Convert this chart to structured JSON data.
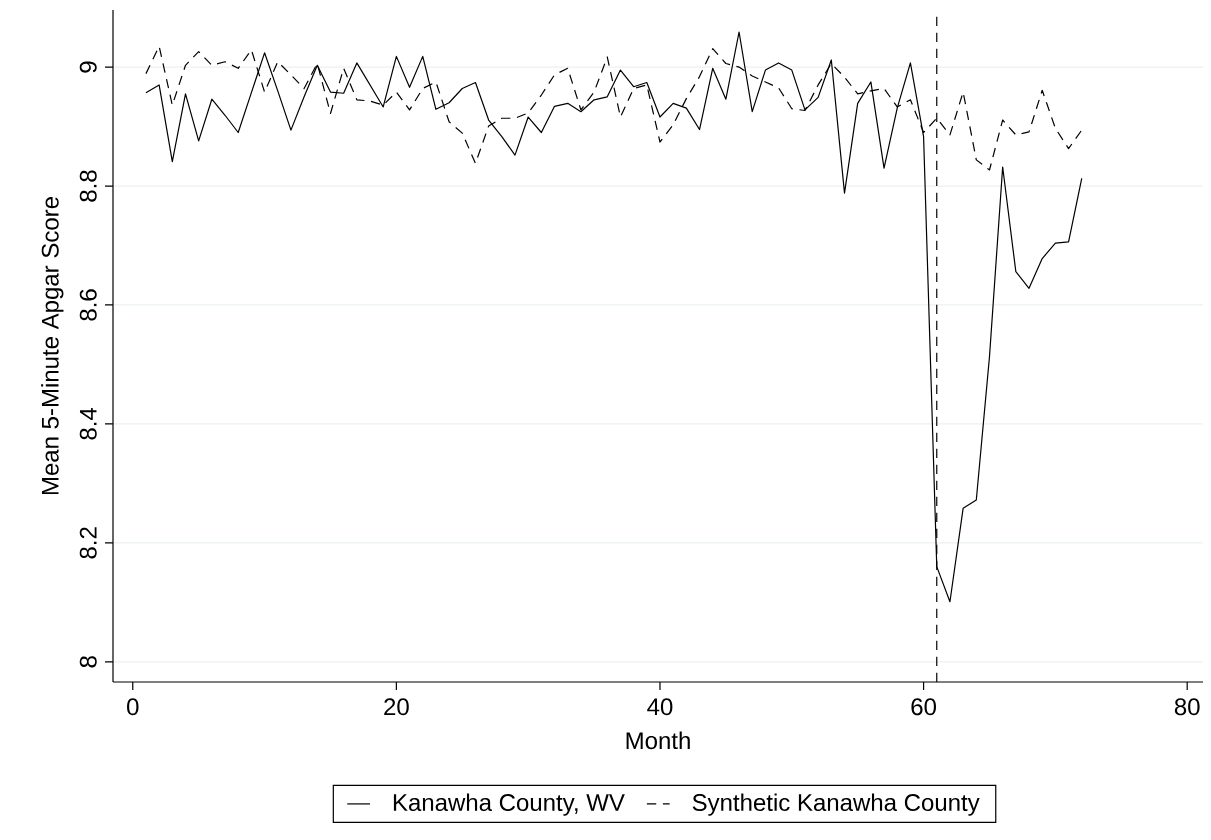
{
  "chart_data": {
    "type": "line",
    "xlabel": "Month",
    "ylabel": "Mean 5-Minute Apgar Score",
    "x": [
      1,
      2,
      3,
      4,
      5,
      6,
      7,
      8,
      9,
      10,
      11,
      12,
      13,
      14,
      15,
      16,
      17,
      18,
      19,
      20,
      21,
      22,
      23,
      24,
      25,
      26,
      27,
      28,
      29,
      30,
      31,
      32,
      33,
      34,
      35,
      36,
      37,
      38,
      39,
      40,
      41,
      42,
      43,
      44,
      45,
      46,
      47,
      48,
      49,
      50,
      51,
      52,
      53,
      54,
      55,
      56,
      57,
      58,
      59,
      60,
      61,
      62,
      63,
      64,
      65,
      66,
      67,
      68,
      69,
      70,
      71,
      72
    ],
    "series": [
      {
        "name": "Kanawha County, WV",
        "color": "#000000",
        "line_style": "solid",
        "values": [
          8.957,
          8.97,
          8.841,
          8.955,
          8.876,
          8.946,
          8.919,
          8.89,
          8.957,
          9.024,
          8.96,
          8.894,
          8.95,
          9.003,
          8.958,
          8.956,
          9.007,
          8.97,
          8.933,
          9.018,
          8.966,
          9.018,
          8.929,
          8.94,
          8.964,
          8.974,
          8.911,
          8.883,
          8.852,
          8.916,
          8.89,
          8.934,
          8.939,
          8.925,
          8.945,
          8.95,
          8.995,
          8.967,
          8.974,
          8.916,
          8.939,
          8.931,
          8.895,
          8.998,
          8.946,
          9.059,
          8.925,
          8.995,
          9.007,
          8.995,
          8.928,
          8.949,
          9.012,
          8.788,
          8.939,
          8.975,
          8.83,
          8.931,
          9.007,
          8.883,
          8.16,
          8.101,
          8.258,
          8.272,
          8.513,
          8.832,
          8.656,
          8.628,
          8.678,
          8.704,
          8.706,
          8.813
        ]
      },
      {
        "name": "Synthetic Kanawha County",
        "color": "#000000",
        "line_style": "dashed",
        "values": [
          8.989,
          9.035,
          8.936,
          9.003,
          9.026,
          9.003,
          9.009,
          8.998,
          9.029,
          8.958,
          9.009,
          8.987,
          8.964,
          9.006,
          8.922,
          8.998,
          8.945,
          8.943,
          8.936,
          8.958,
          8.928,
          8.964,
          8.975,
          8.908,
          8.889,
          8.838,
          8.901,
          8.914,
          8.914,
          8.923,
          8.953,
          8.987,
          8.998,
          8.928,
          8.958,
          9.017,
          8.916,
          8.964,
          8.97,
          8.874,
          8.903,
          8.947,
          8.984,
          9.031,
          9.006,
          9.0,
          8.985,
          8.975,
          8.965,
          8.93,
          8.927,
          8.97,
          9.006,
          8.983,
          8.955,
          8.96,
          8.964,
          8.933,
          8.945,
          8.89,
          8.914,
          8.886,
          8.958,
          8.844,
          8.827,
          8.911,
          8.886,
          8.891,
          8.961,
          8.897,
          8.863,
          8.894
        ]
      }
    ],
    "xlim": [
      -1.5,
      81.2
    ],
    "ylim": [
      7.966,
      9.096
    ],
    "xticks": [
      0,
      20,
      40,
      60,
      80
    ],
    "yticks": [
      8,
      8.2,
      8.4,
      8.6,
      8.8,
      9
    ],
    "grid": "y",
    "legend": "bottom",
    "marker": "none",
    "ref_lines": [
      {
        "axis": "x",
        "value": 61,
        "color": "#000000",
        "line_style": "dashed"
      }
    ]
  }
}
